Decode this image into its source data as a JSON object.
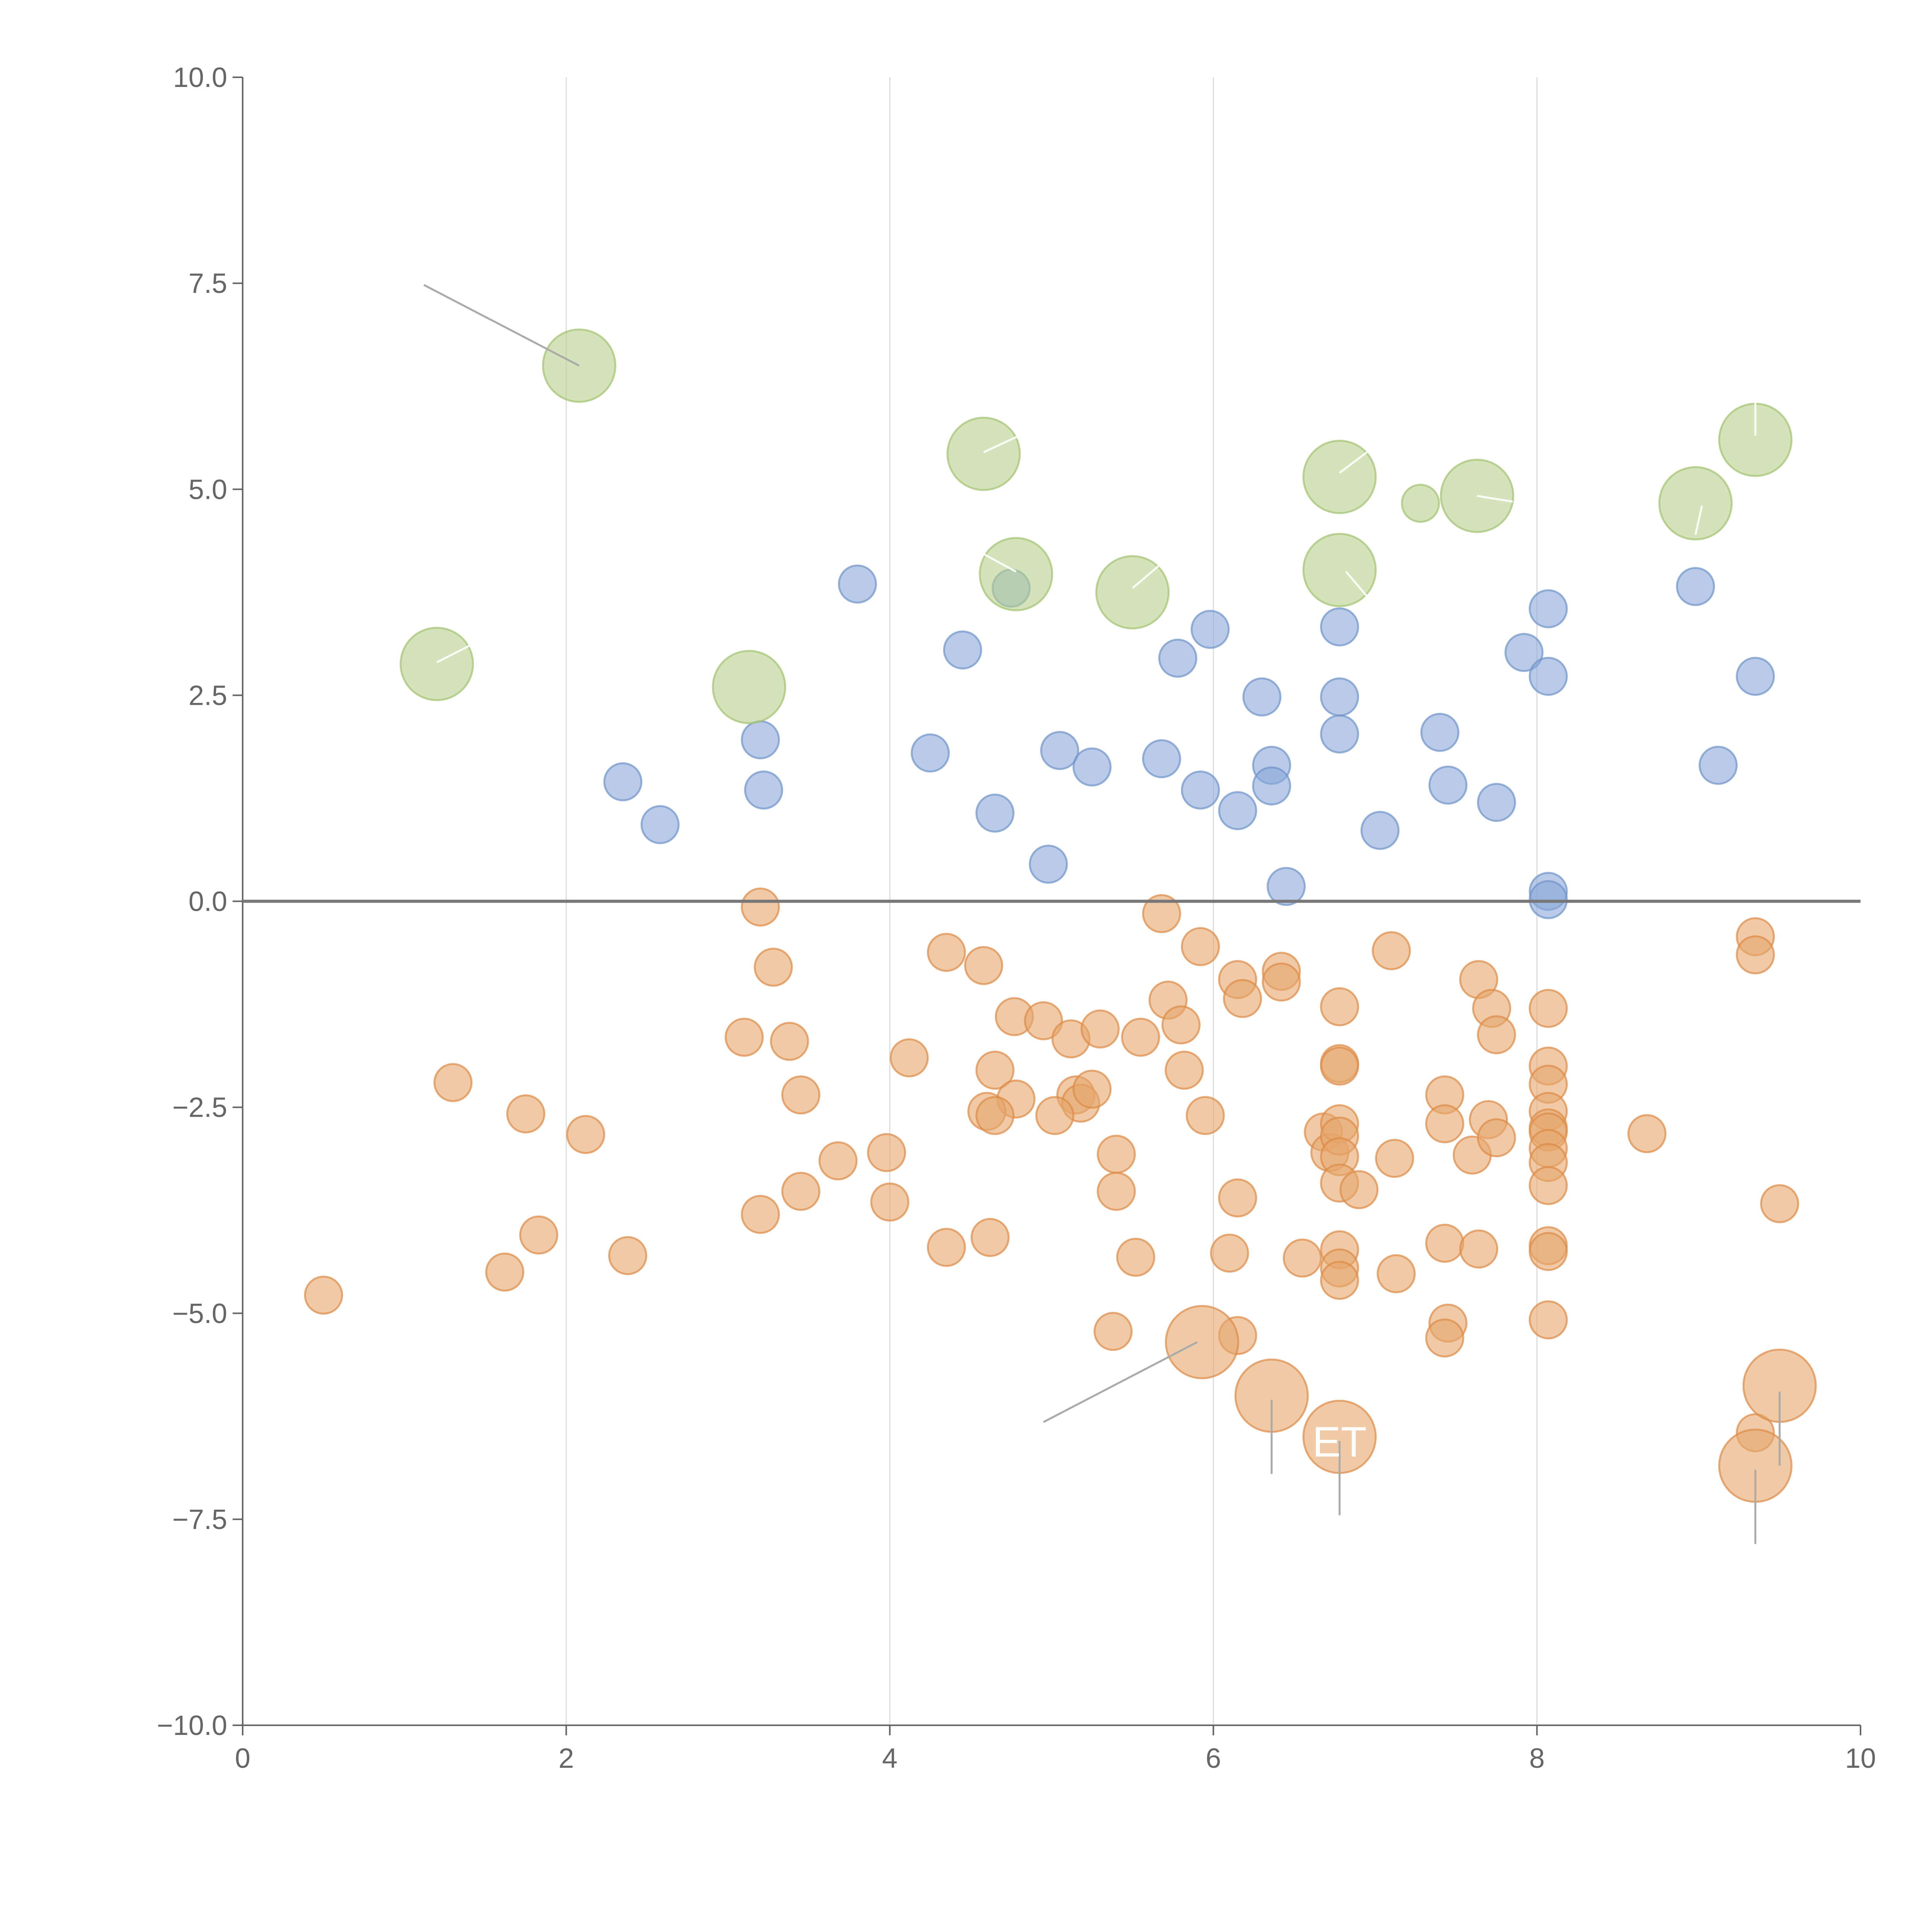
{
  "colors": {
    "blue": "#8ba9d8",
    "blue_stroke": "#6f93c9",
    "orange": "#e6a66c",
    "orange_stroke": "#dd8a45",
    "green": "#b7d08a",
    "green_stroke": "#a3c271",
    "axis": "#666666",
    "grid": "#dddddd"
  },
  "chart_data": {
    "type": "scatter",
    "title": "",
    "xlabel": "",
    "ylabel": "",
    "xlim": [
      0,
      10
    ],
    "ylim": [
      -10,
      10
    ],
    "x_ticks": [
      0,
      2,
      4,
      6,
      8,
      10
    ],
    "x_tick_labels": [
      "0",
      "2",
      "4",
      "6",
      "8",
      "10"
    ],
    "y_ticks": [
      10,
      7.5,
      5,
      2.5,
      0,
      -2.5,
      -5,
      -7.5,
      -10
    ],
    "y_tick_labels": [
      "10.0",
      "7.5",
      "5.0",
      "2.5",
      "0.0",
      "−2.5",
      "−5.0",
      "−7.5",
      "−10.0"
    ],
    "grid": "vertical",
    "reference_line_y": 0,
    "series": [
      {
        "name": "positive",
        "color_key": "blue",
        "points": [
          {
            "x": 3.8,
            "y": 3.85,
            "s": 1
          },
          {
            "x": 4.45,
            "y": 3.05,
            "s": 1
          },
          {
            "x": 4.75,
            "y": 3.8,
            "s": 1
          },
          {
            "x": 5.98,
            "y": 3.3,
            "s": 1
          },
          {
            "x": 5.78,
            "y": 2.95,
            "s": 1
          },
          {
            "x": 6.78,
            "y": 3.33,
            "s": 1
          },
          {
            "x": 8.07,
            "y": 3.55,
            "s": 1
          },
          {
            "x": 7.92,
            "y": 3.02,
            "s": 1
          },
          {
            "x": 8.07,
            "y": 2.73,
            "s": 1
          },
          {
            "x": 8.98,
            "y": 3.82,
            "s": 1
          },
          {
            "x": 9.35,
            "y": 2.73,
            "s": 1
          },
          {
            "x": 9.12,
            "y": 1.65,
            "s": 1
          },
          {
            "x": 3.2,
            "y": 1.96,
            "s": 1
          },
          {
            "x": 3.22,
            "y": 1.35,
            "s": 1
          },
          {
            "x": 2.35,
            "y": 1.45,
            "s": 1
          },
          {
            "x": 2.58,
            "y": 0.93,
            "s": 1
          },
          {
            "x": 4.25,
            "y": 1.8,
            "s": 1
          },
          {
            "x": 4.65,
            "y": 1.07,
            "s": 1
          },
          {
            "x": 5.05,
            "y": 1.83,
            "s": 1
          },
          {
            "x": 5.25,
            "y": 1.63,
            "s": 1
          },
          {
            "x": 4.98,
            "y": 0.45,
            "s": 1
          },
          {
            "x": 5.68,
            "y": 1.73,
            "s": 1
          },
          {
            "x": 5.92,
            "y": 1.35,
            "s": 1
          },
          {
            "x": 6.15,
            "y": 1.1,
            "s": 1
          },
          {
            "x": 6.3,
            "y": 2.48,
            "s": 1
          },
          {
            "x": 6.36,
            "y": 1.65,
            "s": 1
          },
          {
            "x": 6.36,
            "y": 1.4,
            "s": 1
          },
          {
            "x": 6.45,
            "y": 0.18,
            "s": 1
          },
          {
            "x": 6.78,
            "y": 2.48,
            "s": 1
          },
          {
            "x": 6.78,
            "y": 2.03,
            "s": 1
          },
          {
            "x": 7.03,
            "y": 0.86,
            "s": 1
          },
          {
            "x": 7.4,
            "y": 2.05,
            "s": 1
          },
          {
            "x": 7.45,
            "y": 1.41,
            "s": 1
          },
          {
            "x": 7.75,
            "y": 1.2,
            "s": 1
          },
          {
            "x": 8.07,
            "y": 0.12,
            "s": 1
          },
          {
            "x": 8.07,
            "y": 0.02,
            "s": 1
          }
        ]
      },
      {
        "name": "negative",
        "color_key": "orange",
        "points": [
          {
            "x": 3.2,
            "y": -0.07,
            "s": 1
          },
          {
            "x": 3.28,
            "y": -0.8,
            "s": 1
          },
          {
            "x": 3.1,
            "y": -1.65,
            "s": 1
          },
          {
            "x": 3.38,
            "y": -1.7,
            "s": 1
          },
          {
            "x": 3.45,
            "y": -2.35,
            "s": 1
          },
          {
            "x": 3.68,
            "y": -3.15,
            "s": 1
          },
          {
            "x": 3.45,
            "y": -3.52,
            "s": 1
          },
          {
            "x": 3.2,
            "y": -3.8,
            "s": 1
          },
          {
            "x": 1.3,
            "y": -2.2,
            "s": 1
          },
          {
            "x": 1.75,
            "y": -2.58,
            "s": 1
          },
          {
            "x": 2.12,
            "y": -2.83,
            "s": 1
          },
          {
            "x": 1.83,
            "y": -4.05,
            "s": 1
          },
          {
            "x": 1.62,
            "y": -4.5,
            "s": 1
          },
          {
            "x": 2.38,
            "y": -4.3,
            "s": 1
          },
          {
            "x": 0.5,
            "y": -4.78,
            "s": 1
          },
          {
            "x": 3.98,
            "y": -3.05,
            "s": 1
          },
          {
            "x": 4.0,
            "y": -3.65,
            "s": 1
          },
          {
            "x": 4.12,
            "y": -1.9,
            "s": 1
          },
          {
            "x": 4.35,
            "y": -0.62,
            "s": 1
          },
          {
            "x": 4.58,
            "y": -0.78,
            "s": 1
          },
          {
            "x": 4.35,
            "y": -4.2,
            "s": 1
          },
          {
            "x": 4.62,
            "y": -4.08,
            "s": 1
          },
          {
            "x": 4.65,
            "y": -2.05,
            "s": 1
          },
          {
            "x": 4.78,
            "y": -2.4,
            "s": 1
          },
          {
            "x": 4.6,
            "y": -2.55,
            "s": 1
          },
          {
            "x": 4.65,
            "y": -2.6,
            "s": 1
          },
          {
            "x": 4.77,
            "y": -1.4,
            "s": 1
          },
          {
            "x": 4.95,
            "y": -1.45,
            "s": 1
          },
          {
            "x": 5.12,
            "y": -1.67,
            "s": 1
          },
          {
            "x": 5.3,
            "y": -1.55,
            "s": 1
          },
          {
            "x": 5.15,
            "y": -2.35,
            "s": 1
          },
          {
            "x": 5.18,
            "y": -2.45,
            "s": 1
          },
          {
            "x": 5.25,
            "y": -2.28,
            "s": 1
          },
          {
            "x": 5.02,
            "y": -2.6,
            "s": 1
          },
          {
            "x": 5.4,
            "y": -3.07,
            "s": 1
          },
          {
            "x": 5.4,
            "y": -3.52,
            "s": 1
          },
          {
            "x": 5.52,
            "y": -4.32,
            "s": 1
          },
          {
            "x": 5.38,
            "y": -5.22,
            "s": 1
          },
          {
            "x": 5.55,
            "y": -1.65,
            "s": 1
          },
          {
            "x": 5.68,
            "y": -0.15,
            "s": 1
          },
          {
            "x": 5.72,
            "y": -1.2,
            "s": 1
          },
          {
            "x": 5.8,
            "y": -1.5,
            "s": 1
          },
          {
            "x": 5.82,
            "y": -2.05,
            "s": 1
          },
          {
            "x": 5.92,
            "y": -0.55,
            "s": 1
          },
          {
            "x": 5.95,
            "y": -2.6,
            "s": 1
          },
          {
            "x": 6.15,
            "y": -0.95,
            "s": 1
          },
          {
            "x": 6.18,
            "y": -1.18,
            "s": 1
          },
          {
            "x": 6.15,
            "y": -3.6,
            "s": 1
          },
          {
            "x": 6.1,
            "y": -4.27,
            "s": 1
          },
          {
            "x": 6.15,
            "y": -5.27,
            "s": 1
          },
          {
            "x": 6.42,
            "y": -0.85,
            "s": 1
          },
          {
            "x": 6.42,
            "y": -0.98,
            "s": 1
          },
          {
            "x": 6.55,
            "y": -4.33,
            "s": 1
          },
          {
            "x": 6.68,
            "y": -2.8,
            "s": 1
          },
          {
            "x": 6.72,
            "y": -3.05,
            "s": 1
          },
          {
            "x": 6.78,
            "y": -1.28,
            "s": 1
          },
          {
            "x": 6.78,
            "y": -1.97,
            "s": 1
          },
          {
            "x": 6.78,
            "y": -2.0,
            "s": 1
          },
          {
            "x": 6.78,
            "y": -2.7,
            "s": 1
          },
          {
            "x": 6.78,
            "y": -2.85,
            "s": 1
          },
          {
            "x": 6.78,
            "y": -3.1,
            "s": 1
          },
          {
            "x": 6.78,
            "y": -3.42,
            "s": 1
          },
          {
            "x": 6.78,
            "y": -4.23,
            "s": 1
          },
          {
            "x": 6.78,
            "y": -4.45,
            "s": 1
          },
          {
            "x": 6.78,
            "y": -4.6,
            "s": 1
          },
          {
            "x": 6.9,
            "y": -3.5,
            "s": 1
          },
          {
            "x": 7.1,
            "y": -0.6,
            "s": 1
          },
          {
            "x": 7.12,
            "y": -3.12,
            "s": 1
          },
          {
            "x": 7.13,
            "y": -4.52,
            "s": 1
          },
          {
            "x": 7.43,
            "y": -2.35,
            "s": 1
          },
          {
            "x": 7.43,
            "y": -2.7,
            "s": 1
          },
          {
            "x": 7.43,
            "y": -4.15,
            "s": 1
          },
          {
            "x": 7.45,
            "y": -5.12,
            "s": 1
          },
          {
            "x": 7.43,
            "y": -5.3,
            "s": 1
          },
          {
            "x": 7.6,
            "y": -3.08,
            "s": 1
          },
          {
            "x": 7.64,
            "y": -0.95,
            "s": 1
          },
          {
            "x": 7.64,
            "y": -4.22,
            "s": 1
          },
          {
            "x": 7.72,
            "y": -1.3,
            "s": 1
          },
          {
            "x": 7.75,
            "y": -1.62,
            "s": 1
          },
          {
            "x": 7.7,
            "y": -2.65,
            "s": 1
          },
          {
            "x": 7.75,
            "y": -2.87,
            "s": 1
          },
          {
            "x": 8.07,
            "y": -1.3,
            "s": 1
          },
          {
            "x": 8.07,
            "y": -2.0,
            "s": 1
          },
          {
            "x": 8.07,
            "y": -2.22,
            "s": 1
          },
          {
            "x": 8.07,
            "y": -2.55,
            "s": 1
          },
          {
            "x": 8.07,
            "y": -2.75,
            "s": 1
          },
          {
            "x": 8.07,
            "y": -2.8,
            "s": 1
          },
          {
            "x": 8.07,
            "y": -3.0,
            "s": 1
          },
          {
            "x": 8.07,
            "y": -3.17,
            "s": 1
          },
          {
            "x": 8.07,
            "y": -3.45,
            "s": 1
          },
          {
            "x": 8.07,
            "y": -4.18,
            "s": 1
          },
          {
            "x": 8.07,
            "y": -4.25,
            "s": 1
          },
          {
            "x": 8.07,
            "y": -5.08,
            "s": 1
          },
          {
            "x": 8.68,
            "y": -2.82,
            "s": 1
          },
          {
            "x": 9.35,
            "y": -0.43,
            "s": 1
          },
          {
            "x": 9.35,
            "y": -0.65,
            "s": 1
          },
          {
            "x": 9.5,
            "y": -3.67,
            "s": 1
          },
          {
            "x": 9.35,
            "y": -6.45,
            "s": 1
          },
          {
            "x": 5.93,
            "y": -5.35,
            "s": 1.95
          },
          {
            "x": 6.36,
            "y": -6.0,
            "s": 1.95
          },
          {
            "x": 6.78,
            "y": -6.5,
            "s": 1.95
          },
          {
            "x": 9.5,
            "y": -5.88,
            "s": 1.95
          },
          {
            "x": 9.35,
            "y": -6.85,
            "s": 1.95
          }
        ]
      },
      {
        "name": "labeled",
        "color_key": "green",
        "points": [
          {
            "x": 2.08,
            "y": 6.5,
            "s": 1.95
          },
          {
            "x": 1.2,
            "y": 2.88,
            "s": 1.95
          },
          {
            "x": 3.13,
            "y": 2.6,
            "s": 1.95
          },
          {
            "x": 4.58,
            "y": 5.43,
            "s": 1.95
          },
          {
            "x": 4.78,
            "y": 3.97,
            "s": 1.95
          },
          {
            "x": 5.5,
            "y": 3.75,
            "s": 1.95
          },
          {
            "x": 6.78,
            "y": 5.15,
            "s": 1.95
          },
          {
            "x": 6.78,
            "y": 4.02,
            "s": 1.95
          },
          {
            "x": 7.28,
            "y": 4.83,
            "s": 1
          },
          {
            "x": 7.63,
            "y": 4.92,
            "s": 1.95
          },
          {
            "x": 8.98,
            "y": 4.83,
            "s": 1.95
          },
          {
            "x": 9.35,
            "y": 5.6,
            "s": 1.95
          }
        ]
      }
    ],
    "annotations": [
      {
        "text": "",
        "from": [
          2.08,
          6.5
        ],
        "to": [
          1.12,
          7.48
        ],
        "style": "grey"
      },
      {
        "text": "",
        "from": [
          5.9,
          -5.35
        ],
        "to": [
          4.95,
          -6.32
        ],
        "style": "grey"
      },
      {
        "text": "",
        "from": [
          6.36,
          -6.05
        ],
        "to": [
          6.36,
          -6.95
        ],
        "style": "grey"
      },
      {
        "text": "ET",
        "from": [
          6.78,
          -6.55
        ],
        "to": [
          6.78,
          -7.45
        ],
        "style": "grey"
      },
      {
        "text": "",
        "from": [
          9.5,
          -5.95
        ],
        "to": [
          9.5,
          -6.85
        ],
        "style": "grey"
      },
      {
        "text": "",
        "from": [
          9.35,
          -6.9
        ],
        "to": [
          9.35,
          -7.8
        ],
        "style": "grey"
      },
      {
        "text": "",
        "from": [
          1.2,
          2.9
        ],
        "to": [
          1.4,
          3.1
        ],
        "style": "white"
      },
      {
        "text": "",
        "from": [
          4.58,
          5.45
        ],
        "to": [
          4.8,
          5.65
        ],
        "style": "white"
      },
      {
        "text": "",
        "from": [
          4.78,
          4.0
        ],
        "to": [
          4.5,
          4.3
        ],
        "style": "white"
      },
      {
        "text": "",
        "from": [
          5.5,
          3.8
        ],
        "to": [
          5.68,
          4.1
        ],
        "style": "white"
      },
      {
        "text": "",
        "from": [
          6.78,
          5.2
        ],
        "to": [
          6.95,
          5.45
        ],
        "style": "white"
      },
      {
        "text": "",
        "from": [
          6.82,
          4.0
        ],
        "to": [
          6.95,
          3.7
        ],
        "style": "white"
      },
      {
        "text": "",
        "from": [
          7.63,
          4.92
        ],
        "to": [
          7.85,
          4.85
        ],
        "style": "white"
      },
      {
        "text": "",
        "from": [
          9.02,
          4.8
        ],
        "to": [
          8.98,
          4.45
        ],
        "style": "white"
      },
      {
        "text": "",
        "from": [
          9.35,
          5.65
        ],
        "to": [
          9.35,
          6.05
        ],
        "style": "white"
      }
    ]
  }
}
